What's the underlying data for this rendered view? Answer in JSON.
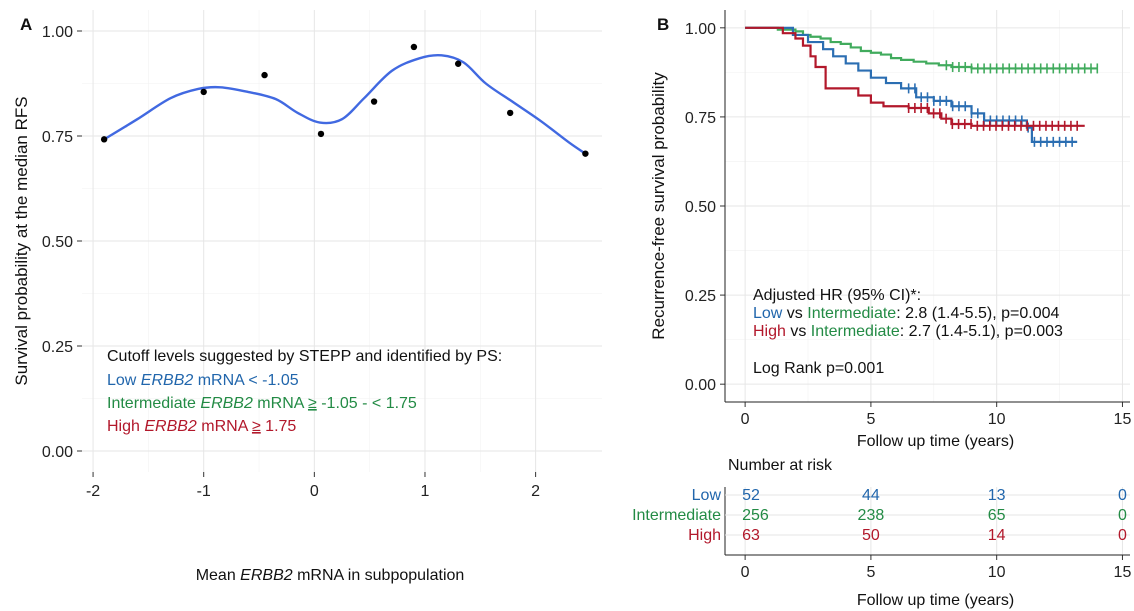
{
  "chart_data": [
    {
      "panel": "A",
      "type": "scatter",
      "ylabel": "Survival probability at the median RFS",
      "xlabel_parts": [
        "Mean ",
        "ERBB2",
        " mRNA in subpopulation"
      ],
      "xlim": [
        -2.1,
        2.6
      ],
      "ylim": [
        -0.05,
        1.05
      ],
      "x_ticks": [
        -2,
        -1,
        0,
        1,
        2
      ],
      "x_tick_labels": [
        "-2",
        "-1",
        "0",
        "1",
        "2"
      ],
      "y_ticks": [
        0,
        0.25,
        0.5,
        0.75,
        1.0
      ],
      "y_tick_labels": [
        "0.00",
        "0.25",
        "0.50",
        "0.75",
        "1.00"
      ],
      "points": [
        {
          "x": -1.9,
          "y": 0.742
        },
        {
          "x": -1.0,
          "y": 0.855
        },
        {
          "x": -0.45,
          "y": 0.895
        },
        {
          "x": 0.06,
          "y": 0.755
        },
        {
          "x": 0.54,
          "y": 0.832
        },
        {
          "x": 0.9,
          "y": 0.962
        },
        {
          "x": 1.3,
          "y": 0.922
        },
        {
          "x": 1.77,
          "y": 0.805
        },
        {
          "x": 2.45,
          "y": 0.708
        }
      ],
      "smooth_line": {
        "color": "#4169e1",
        "points": [
          {
            "x": -1.9,
            "y": 0.742
          },
          {
            "x": -1.6,
            "y": 0.79
          },
          {
            "x": -1.3,
            "y": 0.84
          },
          {
            "x": -1.05,
            "y": 0.862
          },
          {
            "x": -0.85,
            "y": 0.866
          },
          {
            "x": -0.6,
            "y": 0.855
          },
          {
            "x": -0.35,
            "y": 0.838
          },
          {
            "x": -0.15,
            "y": 0.805
          },
          {
            "x": 0.05,
            "y": 0.782
          },
          {
            "x": 0.25,
            "y": 0.79
          },
          {
            "x": 0.45,
            "y": 0.84
          },
          {
            "x": 0.7,
            "y": 0.905
          },
          {
            "x": 0.95,
            "y": 0.935
          },
          {
            "x": 1.15,
            "y": 0.942
          },
          {
            "x": 1.35,
            "y": 0.925
          },
          {
            "x": 1.55,
            "y": 0.875
          },
          {
            "x": 1.8,
            "y": 0.83
          },
          {
            "x": 2.05,
            "y": 0.785
          },
          {
            "x": 2.3,
            "y": 0.735
          },
          {
            "x": 2.45,
            "y": 0.708
          }
        ]
      },
      "annotation": {
        "title": "Cutoff levels suggested by STEPP and identified by PS:",
        "lines": [
          {
            "color": "#2166ac",
            "parts": [
              "Low ",
              "ERBB2",
              " mRNA < -1.05"
            ]
          },
          {
            "color": "#238b45",
            "parts": [
              "Intermediate ",
              "ERBB2",
              " mRNA ",
              "≥",
              " -1.05 - < 1.75"
            ]
          },
          {
            "color": "#b2182b",
            "parts": [
              "High ",
              "ERBB2",
              " mRNA ",
              "≥",
              " 1.75"
            ]
          }
        ]
      }
    },
    {
      "panel": "B",
      "type": "line",
      "ylabel": "Recurrence-free survival probability",
      "xlabel": "Follow up time (years)",
      "xlim": [
        -0.8,
        15.3
      ],
      "ylim": [
        -0.05,
        1.05
      ],
      "x_ticks": [
        0,
        5,
        10,
        15
      ],
      "x_tick_labels": [
        "0",
        "5",
        "10",
        "15"
      ],
      "y_ticks": [
        0,
        0.25,
        0.5,
        0.75,
        1.0
      ],
      "y_tick_labels": [
        "0.00",
        "0.25",
        "0.50",
        "0.75",
        "1.00"
      ],
      "series": [
        {
          "name": "Intermediate",
          "color": "#41ab5d",
          "steps": [
            [
              0,
              1.0
            ],
            [
              1.3,
              0.995
            ],
            [
              2.0,
              0.99
            ],
            [
              2.3,
              0.98
            ],
            [
              2.6,
              0.975
            ],
            [
              3.0,
              0.97
            ],
            [
              3.4,
              0.96
            ],
            [
              3.8,
              0.955
            ],
            [
              4.2,
              0.945
            ],
            [
              4.6,
              0.935
            ],
            [
              5.0,
              0.93
            ],
            [
              5.4,
              0.925
            ],
            [
              5.8,
              0.915
            ],
            [
              6.2,
              0.91
            ],
            [
              6.7,
              0.905
            ],
            [
              7.2,
              0.9
            ],
            [
              7.7,
              0.895
            ],
            [
              8.2,
              0.89
            ],
            [
              9.0,
              0.886
            ],
            [
              14.0,
              0.886
            ]
          ],
          "censor_start": 8.0,
          "censor_end": 14.0
        },
        {
          "name": "Low",
          "color": "#2b6eb2",
          "steps": [
            [
              0,
              1.0
            ],
            [
              1.9,
              0.98
            ],
            [
              2.5,
              0.96
            ],
            [
              3.1,
              0.94
            ],
            [
              3.5,
              0.92
            ],
            [
              4.0,
              0.9
            ],
            [
              4.5,
              0.88
            ],
            [
              5.0,
              0.86
            ],
            [
              5.6,
              0.845
            ],
            [
              6.2,
              0.83
            ],
            [
              6.8,
              0.805
            ],
            [
              7.5,
              0.795
            ],
            [
              8.2,
              0.78
            ],
            [
              9.0,
              0.76
            ],
            [
              9.5,
              0.74
            ],
            [
              11.2,
              0.72
            ],
            [
              11.4,
              0.68
            ],
            [
              13.2,
              0.68
            ]
          ],
          "censor_start": 6.5,
          "censor_end": 13.0
        },
        {
          "name": "High",
          "color": "#b2182b",
          "steps": [
            [
              0,
              1.0
            ],
            [
              1.5,
              0.985
            ],
            [
              2.0,
              0.97
            ],
            [
              2.3,
              0.95
            ],
            [
              2.6,
              0.92
            ],
            [
              2.8,
              0.89
            ],
            [
              3.2,
              0.83
            ],
            [
              4.5,
              0.81
            ],
            [
              5.0,
              0.79
            ],
            [
              5.5,
              0.78
            ],
            [
              6.5,
              0.775
            ],
            [
              7.3,
              0.76
            ],
            [
              7.8,
              0.745
            ],
            [
              8.2,
              0.73
            ],
            [
              9.0,
              0.725
            ],
            [
              13.5,
              0.725
            ]
          ],
          "censor_start": 6.5,
          "censor_end": 13.2
        }
      ],
      "annotation": {
        "title": "Adjusted HR (95% CI)*:",
        "lines": [
          {
            "parts": [
              {
                "t": "Low",
                "c": "#2166ac"
              },
              {
                "t": " vs ",
                "c": "#111111"
              },
              {
                "t": "Intermediate",
                "c": "#238b45"
              },
              {
                "t": ": 2.8 (1.4-5.5), p=0.004",
                "c": "#111111"
              }
            ]
          },
          {
            "parts": [
              {
                "t": "High",
                "c": "#b2182b"
              },
              {
                "t": " vs ",
                "c": "#111111"
              },
              {
                "t": "Intermediate",
                "c": "#238b45"
              },
              {
                "t": ": 2.7 (1.4-5.1), p=0.003",
                "c": "#111111"
              }
            ]
          }
        ],
        "logrank": "Log Rank p=0.001"
      }
    },
    {
      "panel": "B-risk",
      "type": "table",
      "title": "Number at risk",
      "xlabel": "Follow up time (years)",
      "x_ticks": [
        0,
        5,
        10,
        15
      ],
      "x_tick_labels": [
        "0",
        "5",
        "10",
        "15"
      ],
      "rows": [
        {
          "label": "Low",
          "color": "#2166ac",
          "values": [
            "52",
            "44",
            "13",
            "0"
          ]
        },
        {
          "label": "Intermediate",
          "color": "#238b45",
          "values": [
            "256",
            "238",
            "65",
            "0"
          ]
        },
        {
          "label": "High",
          "color": "#b2182b",
          "values": [
            "63",
            "50",
            "14",
            "0"
          ]
        }
      ]
    }
  ],
  "panel_labels": [
    "A",
    "B"
  ]
}
